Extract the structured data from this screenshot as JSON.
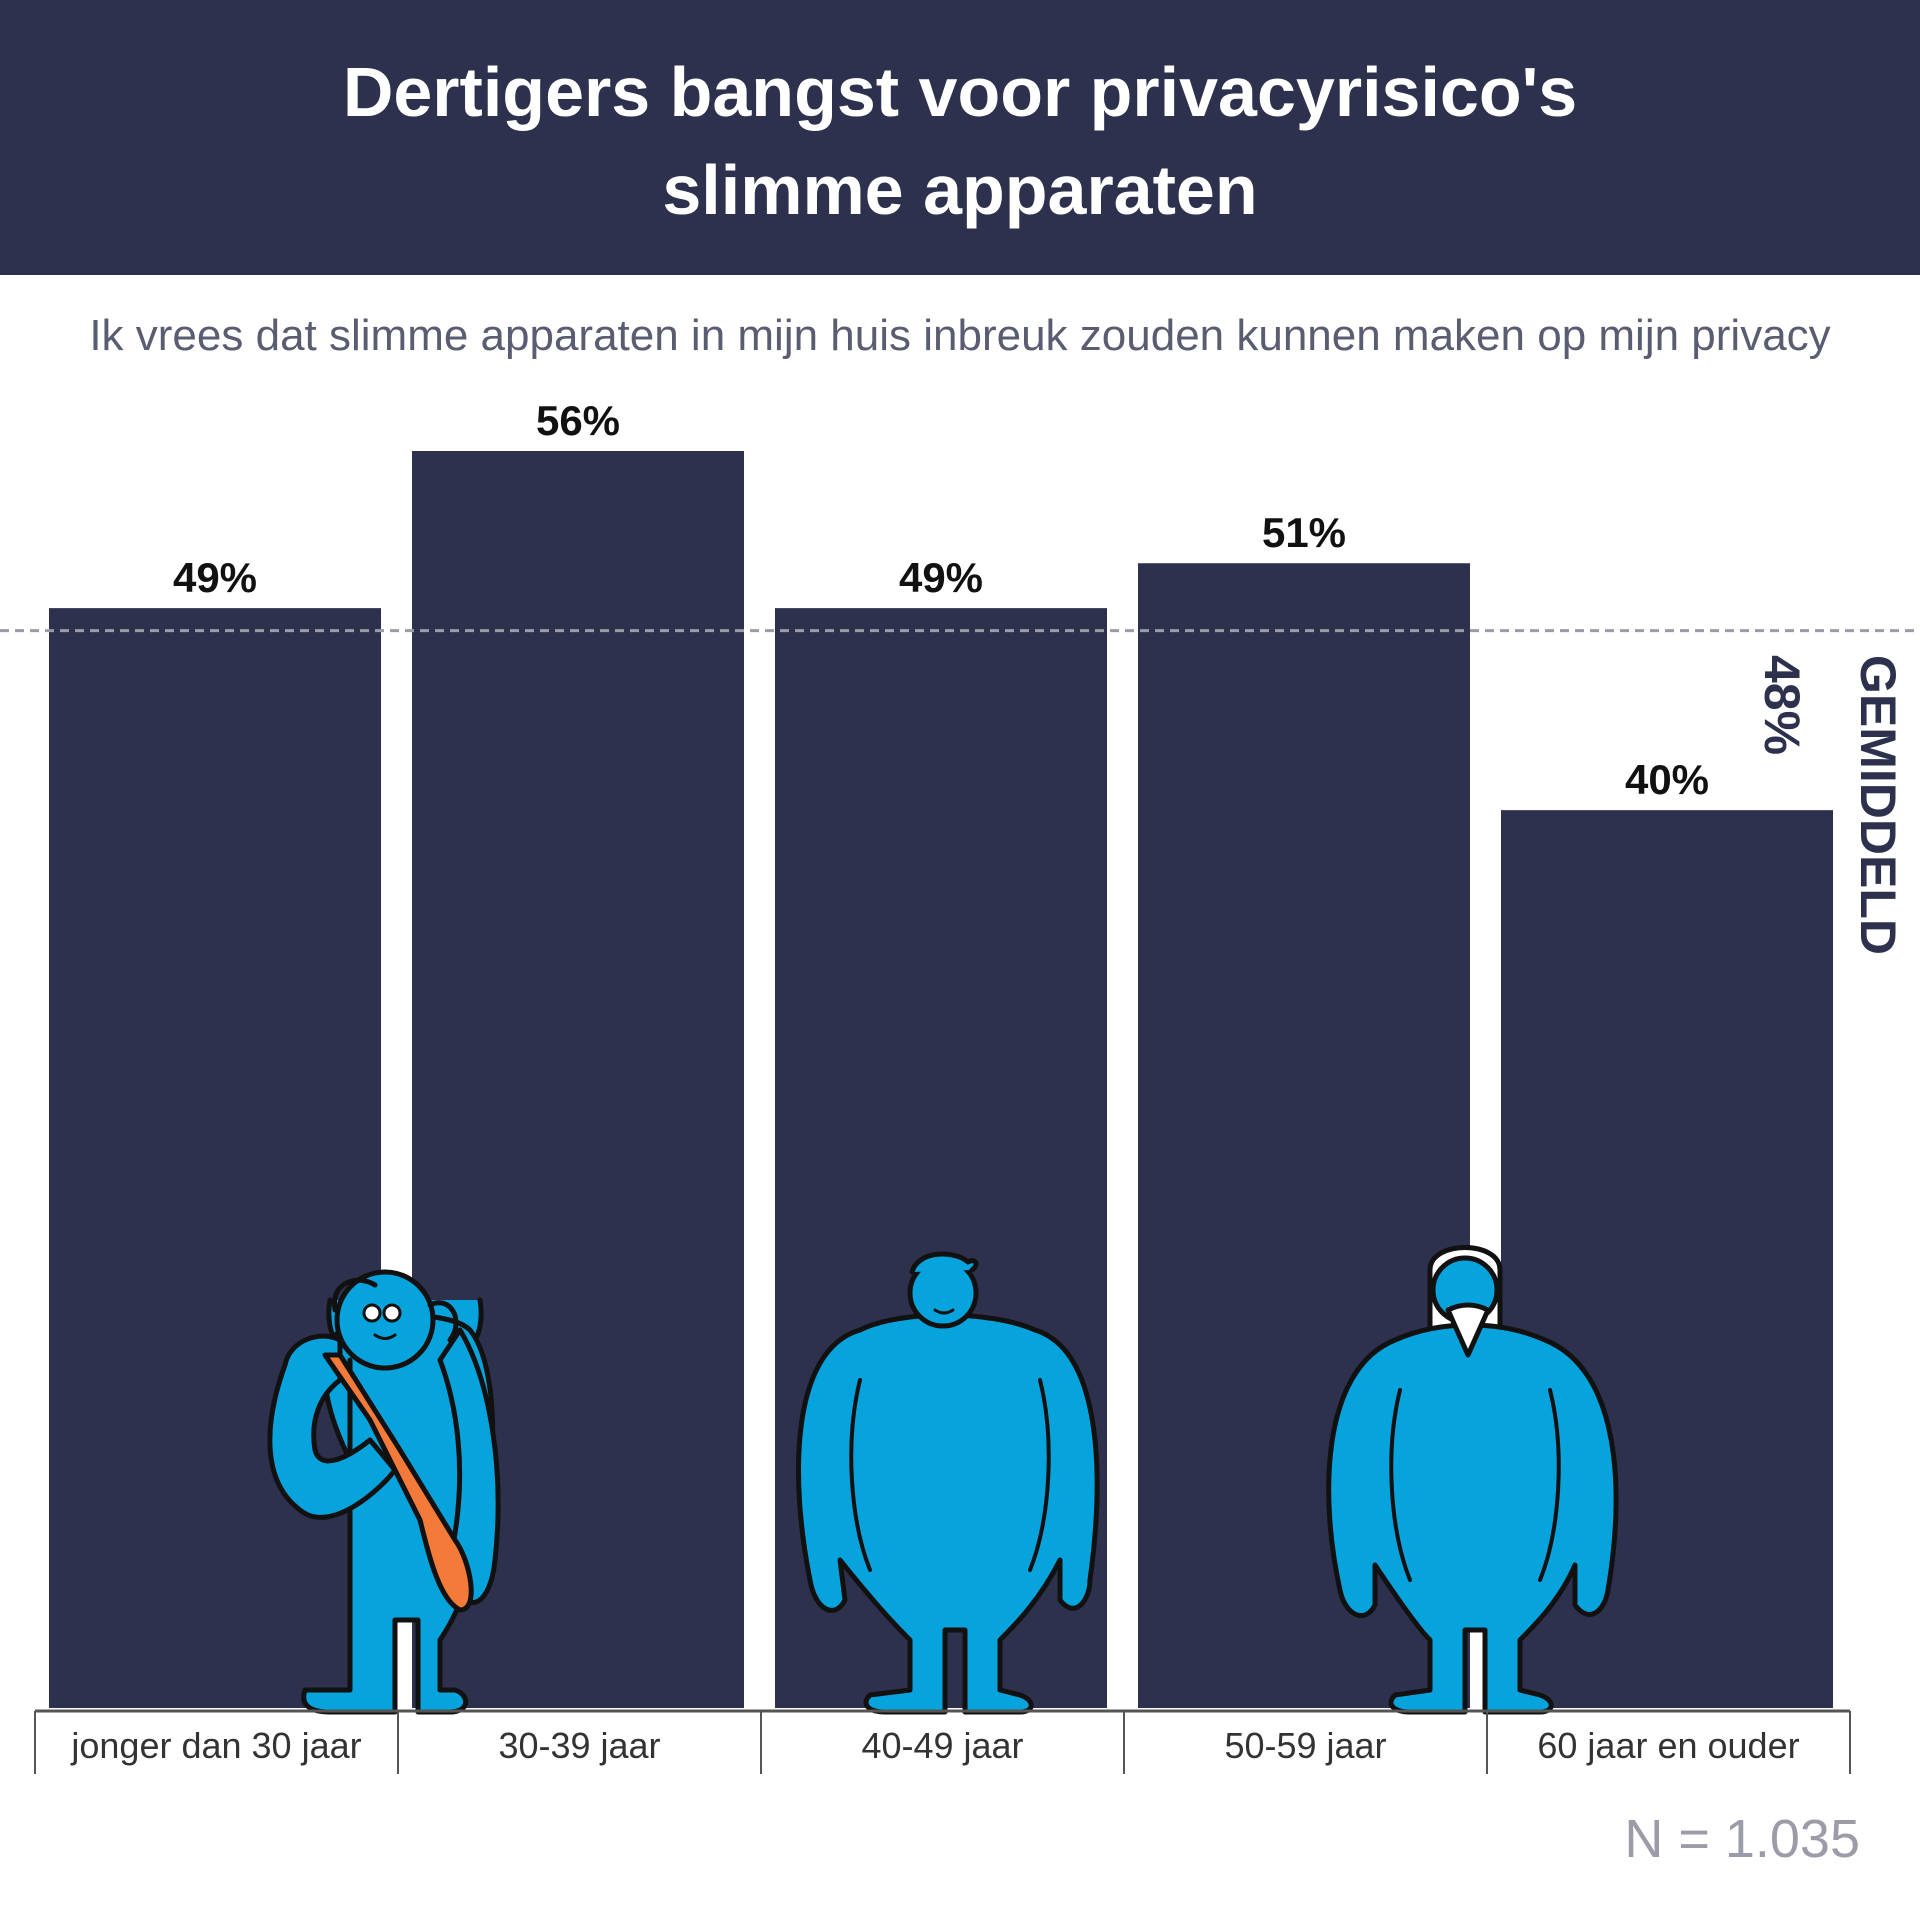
{
  "header": {
    "title_line1": "Dertigers bangst voor privacyrisico's",
    "title_line2": "slimme apparaten"
  },
  "subtitle": "Ik vrees dat slimme apparaten in mijn huis inbreuk zouden kunnen maken op mijn privacy",
  "average_label": "GEMIDDELD 48%",
  "sample_size": "N = 1.035",
  "colors": {
    "header_bg": "#2d314d",
    "bar": "#2d314d",
    "figure": "#06a3dc",
    "figure_shade": "#0a86b8",
    "bag": "#f47a3a",
    "subtitle": "#5a5d72",
    "muted": "#9b9ca8"
  },
  "icons": [
    "young-person-with-bag-icon",
    "adult-person-icon",
    "elderly-person-with-beard-icon"
  ],
  "chart_data": {
    "type": "bar",
    "title": "Dertigers bangst voor privacyrisico's slimme apparaten",
    "subtitle": "Ik vrees dat slimme apparaten in mijn huis inbreuk zouden kunnen maken op mijn privacy",
    "categories": [
      "jonger dan 30 jaar",
      "30-39 jaar",
      "40-49 jaar",
      "50-59 jaar",
      "60 jaar en ouder"
    ],
    "values": [
      49,
      56,
      49,
      51,
      40
    ],
    "value_labels": [
      "49%",
      "56%",
      "49%",
      "51%",
      "40%"
    ],
    "unit": "%",
    "reference_line": {
      "value": 48,
      "label": "GEMIDDELD 48%",
      "style": "dashed"
    },
    "ylim": [
      0,
      56
    ],
    "grid": false,
    "legend": "none"
  }
}
